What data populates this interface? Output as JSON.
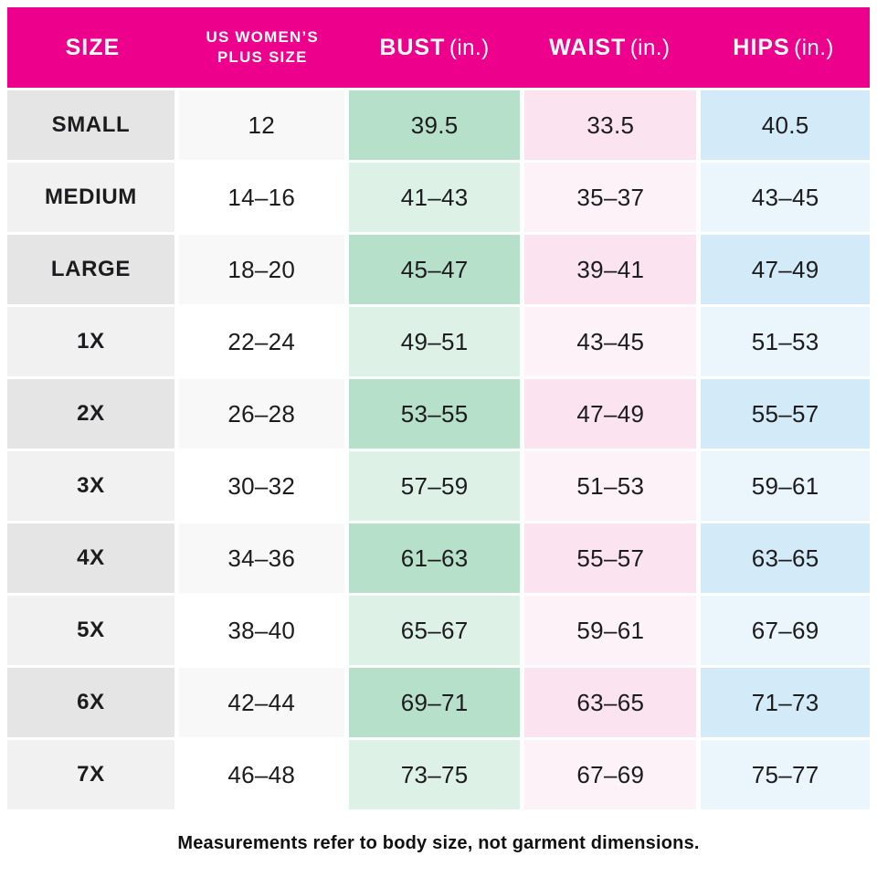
{
  "colors": {
    "header_bg": "#EC008C",
    "bust_dark": "#b6e0ca",
    "bust_light": "#def1e7",
    "waist_dark": "#fbe3f0",
    "waist_light": "#fdf2f8",
    "hips_dark": "#d3ebf8",
    "hips_light": "#eaf5fc",
    "size_dark": "#e5e5e6",
    "size_light": "#f1f1f2"
  },
  "header": {
    "size": "SIZE",
    "plus_line1": "US WOMEN’S",
    "plus_line2": "PLUS SIZE",
    "bust": "BUST",
    "waist": "WAIST",
    "hips": "HIPS",
    "unit": "(in.)"
  },
  "footer": {
    "note": "Measurements refer to body size, not garment dimensions."
  },
  "chart_data": {
    "type": "table",
    "title": "Women's plus size chart",
    "columns": [
      "SIZE",
      "US WOMEN’S PLUS SIZE",
      "BUST (in.)",
      "WAIST (in.)",
      "HIPS (in.)"
    ],
    "rows": [
      [
        "SMALL",
        "12",
        "39.5",
        "33.5",
        "40.5"
      ],
      [
        "MEDIUM",
        "14–16",
        "41–43",
        "35–37",
        "43–45"
      ],
      [
        "LARGE",
        "18–20",
        "45–47",
        "39–41",
        "47–49"
      ],
      [
        "1X",
        "22–24",
        "49–51",
        "43–45",
        "51–53"
      ],
      [
        "2X",
        "26–28",
        "53–55",
        "47–49",
        "55–57"
      ],
      [
        "3X",
        "30–32",
        "57–59",
        "51–53",
        "59–61"
      ],
      [
        "4X",
        "34–36",
        "61–63",
        "55–57",
        "63–65"
      ],
      [
        "5X",
        "38–40",
        "65–67",
        "59–61",
        "67–69"
      ],
      [
        "6X",
        "42–44",
        "69–71",
        "63–65",
        "71–73"
      ],
      [
        "7X",
        "46–48",
        "73–75",
        "67–69",
        "75–77"
      ]
    ]
  }
}
